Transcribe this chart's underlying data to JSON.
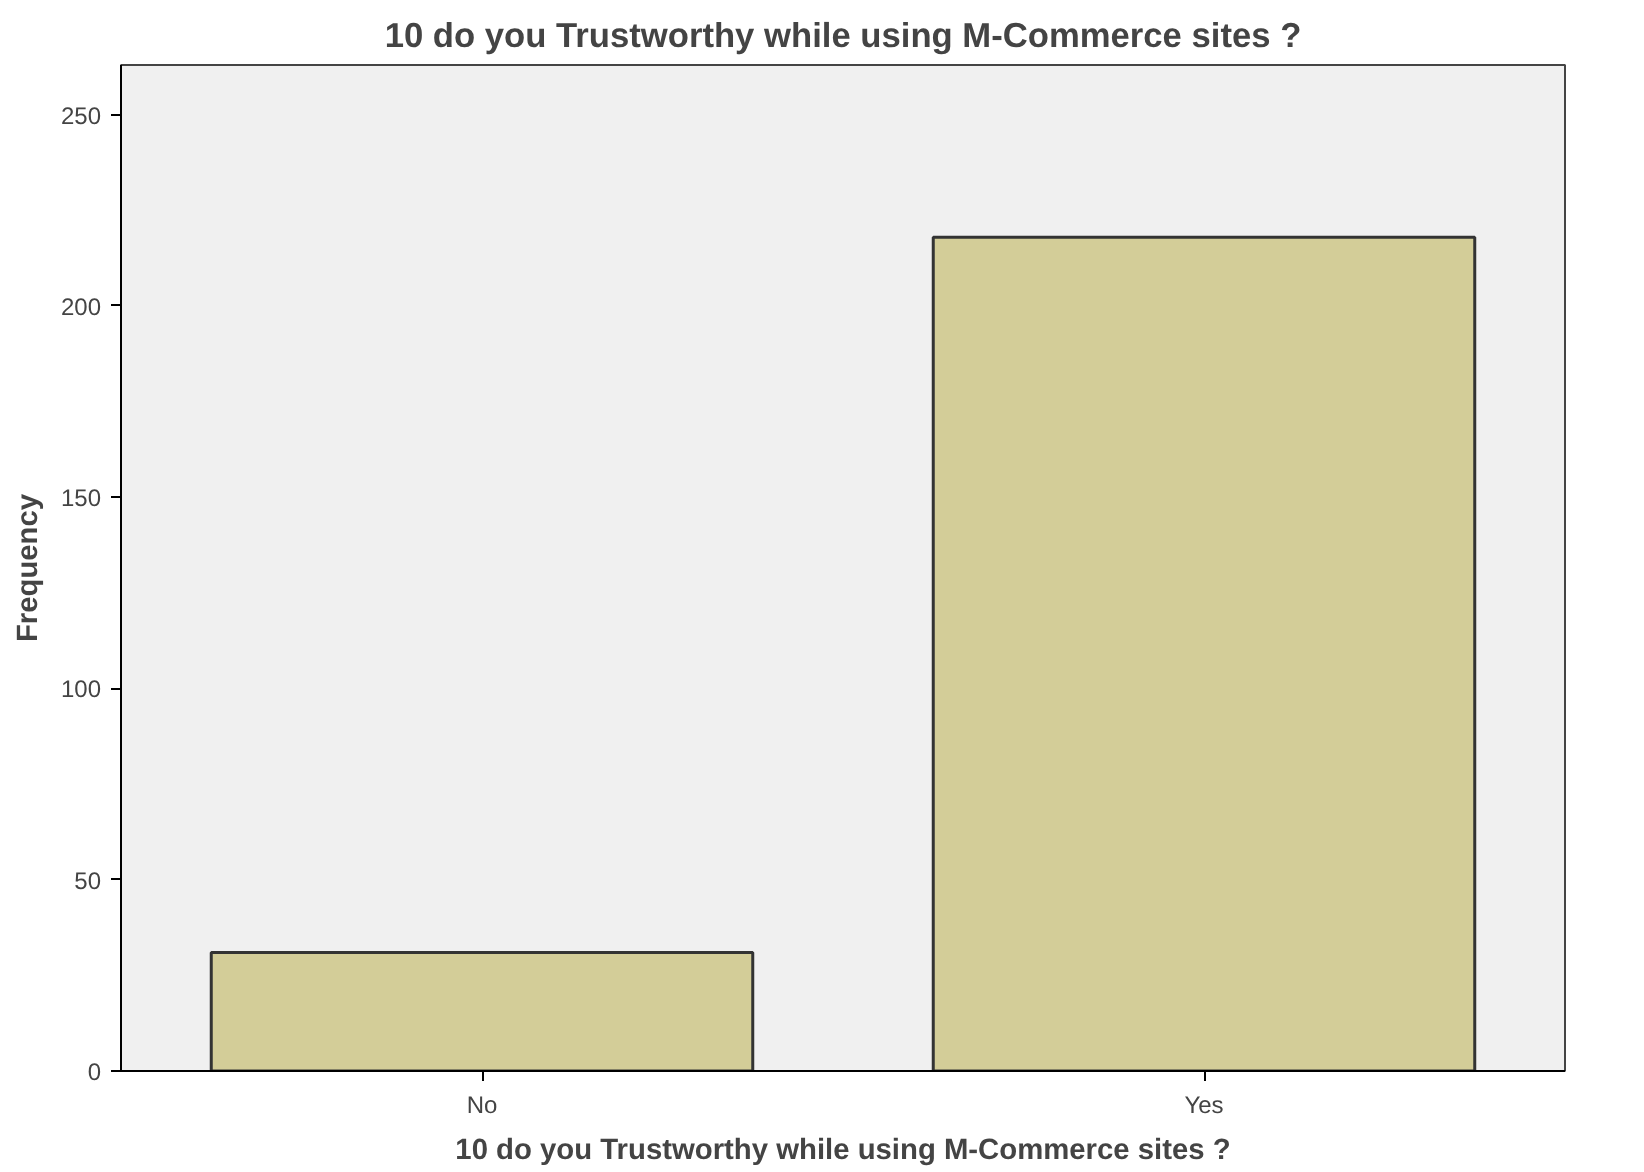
{
  "chart_data": {
    "type": "bar",
    "title": "10 do you Trustworthy while using M-Commerce sites ?",
    "xlabel": "10 do you Trustworthy while using M-Commerce sites ?",
    "ylabel": "Frequency",
    "categories": [
      "No",
      "Yes"
    ],
    "values": [
      31,
      218
    ],
    "color": "#d3cd98",
    "ylim": [
      0,
      263
    ],
    "yticks": [
      0,
      50,
      100,
      150,
      200,
      250
    ],
    "grid": false
  }
}
